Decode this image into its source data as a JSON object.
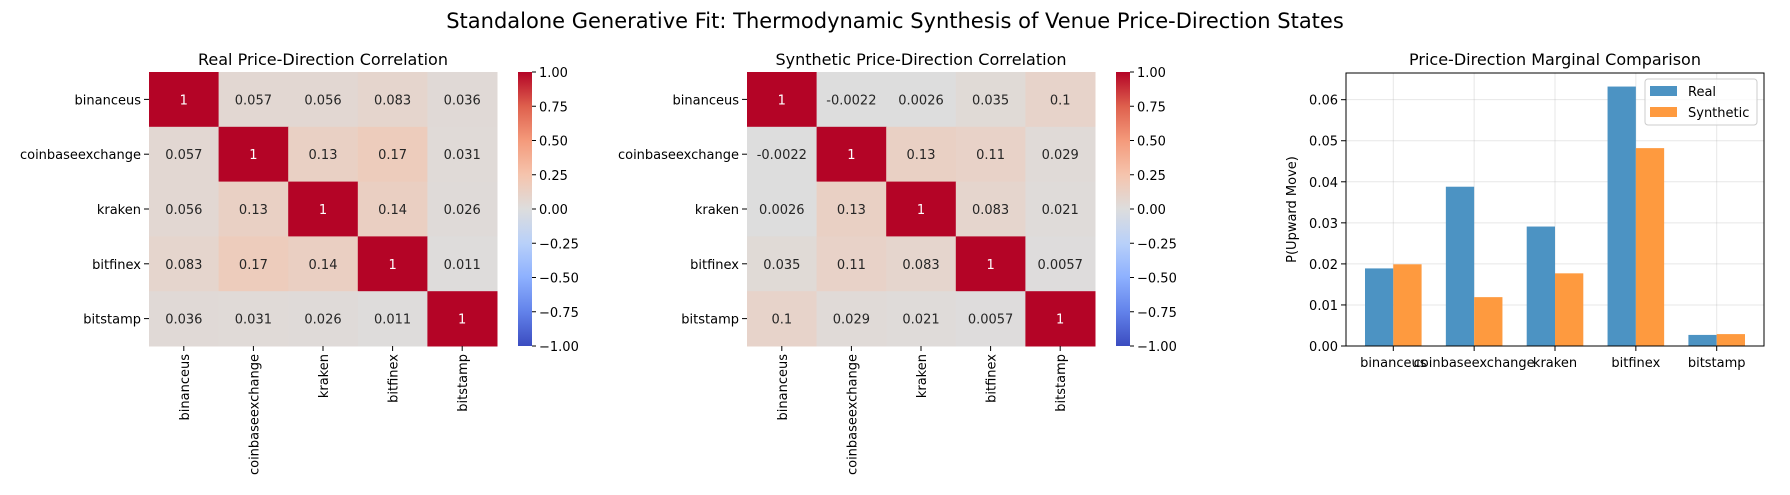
{
  "figure": {
    "suptitle": "Standalone Generative Fit: Thermodynamic Synthesis of Venue Price-Direction States"
  },
  "chart_data": [
    {
      "type": "heatmap",
      "title": "Real Price-Direction Correlation",
      "colormap": "coolwarm",
      "vmin": -1,
      "vmax": 1,
      "colorbar_ticks": [
        "1.00",
        "0.75",
        "0.50",
        "0.25",
        "0.00",
        "−0.25",
        "−0.50",
        "−0.75",
        "−1.00"
      ],
      "colorbar_values": [
        1,
        0.75,
        0.5,
        0.25,
        0,
        -0.25,
        -0.5,
        -0.75,
        -1
      ],
      "labels": [
        "binanceus",
        "coinbaseexchange",
        "kraken",
        "bitfinex",
        "bitstamp"
      ],
      "values": [
        [
          1,
          0.057,
          0.056,
          0.083,
          0.036
        ],
        [
          0.057,
          1,
          0.13,
          0.17,
          0.031
        ],
        [
          0.056,
          0.13,
          1,
          0.14,
          0.026
        ],
        [
          0.083,
          0.17,
          0.14,
          1,
          0.011
        ],
        [
          0.036,
          0.031,
          0.026,
          0.011,
          1
        ]
      ],
      "annotations": [
        [
          "1",
          "0.057",
          "0.056",
          "0.083",
          "0.036"
        ],
        [
          "0.057",
          "1",
          "0.13",
          "0.17",
          "0.031"
        ],
        [
          "0.056",
          "0.13",
          "1",
          "0.14",
          "0.026"
        ],
        [
          "0.083",
          "0.17",
          "0.14",
          "1",
          "0.011"
        ],
        [
          "0.036",
          "0.031",
          "0.026",
          "0.011",
          "1"
        ]
      ]
    },
    {
      "type": "heatmap",
      "title": "Synthetic Price-Direction Correlation",
      "colormap": "coolwarm",
      "vmin": -1,
      "vmax": 1,
      "colorbar_ticks": [
        "1.00",
        "0.75",
        "0.50",
        "0.25",
        "0.00",
        "−0.25",
        "−0.50",
        "−0.75",
        "−1.00"
      ],
      "colorbar_values": [
        1,
        0.75,
        0.5,
        0.25,
        0,
        -0.25,
        -0.5,
        -0.75,
        -1
      ],
      "labels": [
        "binanceus",
        "coinbaseexchange",
        "kraken",
        "bitfinex",
        "bitstamp"
      ],
      "values": [
        [
          1,
          -0.0022,
          0.0026,
          0.035,
          0.1
        ],
        [
          -0.0022,
          1,
          0.13,
          0.11,
          0.029
        ],
        [
          0.0026,
          0.13,
          1,
          0.083,
          0.021
        ],
        [
          0.035,
          0.11,
          0.083,
          1,
          0.0057
        ],
        [
          0.1,
          0.029,
          0.021,
          0.0057,
          1
        ]
      ],
      "annotations": [
        [
          "1",
          "-0.0022",
          "0.0026",
          "0.035",
          "0.1"
        ],
        [
          "-0.0022",
          "1",
          "0.13",
          "0.11",
          "0.029"
        ],
        [
          "0.0026",
          "0.13",
          "1",
          "0.083",
          "0.021"
        ],
        [
          "0.035",
          "0.11",
          "0.083",
          "1",
          "0.0057"
        ],
        [
          "0.1",
          "0.029",
          "0.021",
          "0.0057",
          "1"
        ]
      ]
    },
    {
      "type": "bar",
      "title": "Price-Direction Marginal Comparison",
      "xlabel": "",
      "ylabel": "P(Upward Move)",
      "categories": [
        "binanceus",
        "coinbaseexchange",
        "kraken",
        "bitfinex",
        "bitstamp"
      ],
      "series": [
        {
          "name": "Real",
          "color": "#4c93c3",
          "values": [
            0.0189,
            0.0388,
            0.0291,
            0.0632,
            0.0027
          ]
        },
        {
          "name": "Synthetic",
          "color": "#fe9a3f",
          "values": [
            0.0199,
            0.0119,
            0.0177,
            0.0482,
            0.0029
          ]
        }
      ],
      "ylim": [
        0,
        0.0665
      ],
      "xlim": [
        -0.585,
        4.585
      ],
      "yticks": [
        "0.00",
        "0.01",
        "0.02",
        "0.03",
        "0.04",
        "0.05",
        "0.06"
      ],
      "ytick_values": [
        0,
        0.01,
        0.02,
        0.03,
        0.04,
        0.05,
        0.06
      ],
      "grid": true,
      "legend": "top-right"
    }
  ]
}
